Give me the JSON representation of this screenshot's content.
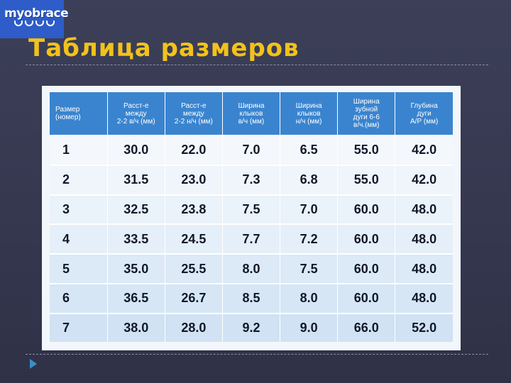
{
  "logo": {
    "text": "myobrace",
    "color": "#2e5cc8"
  },
  "title": "Таблица размеров",
  "colors": {
    "title": "#f2c21b",
    "header": "#3a84cf",
    "bullet": "#3a8fc9"
  },
  "bullet_icon": "triangle-right-icon",
  "table": {
    "headers": [
      "Размер\n(номер)",
      "Расст-е\nмежду\n2-2 в/ч (мм)",
      "Расст-е\nмежду\n2-2 н/ч (мм)",
      "Ширина\nклыков\nв/ч (мм)",
      "Ширина\nклыков\nн/ч (мм)",
      "Ширина\nзубной\nдуги 6-6\nв/ч.(мм)",
      "Глубина\nдуги\nА/Р (мм)"
    ],
    "rows": [
      [
        "1",
        "30.0",
        "22.0",
        "7.0",
        "6.5",
        "55.0",
        "42.0"
      ],
      [
        "2",
        "31.5",
        "23.0",
        "7.3",
        "6.8",
        "55.0",
        "42.0"
      ],
      [
        "3",
        "32.5",
        "23.8",
        "7.5",
        "7.0",
        "60.0",
        "48.0"
      ],
      [
        "4",
        "33.5",
        "24.5",
        "7.7",
        "7.2",
        "60.0",
        "48.0"
      ],
      [
        "5",
        "35.0",
        "25.5",
        "8.0",
        "7.5",
        "60.0",
        "48.0"
      ],
      [
        "6",
        "36.5",
        "26.7",
        "8.5",
        "8.0",
        "60.0",
        "48.0"
      ],
      [
        "7",
        "38.0",
        "28.0",
        "9.2",
        "9.0",
        "66.0",
        "52.0"
      ]
    ]
  }
}
